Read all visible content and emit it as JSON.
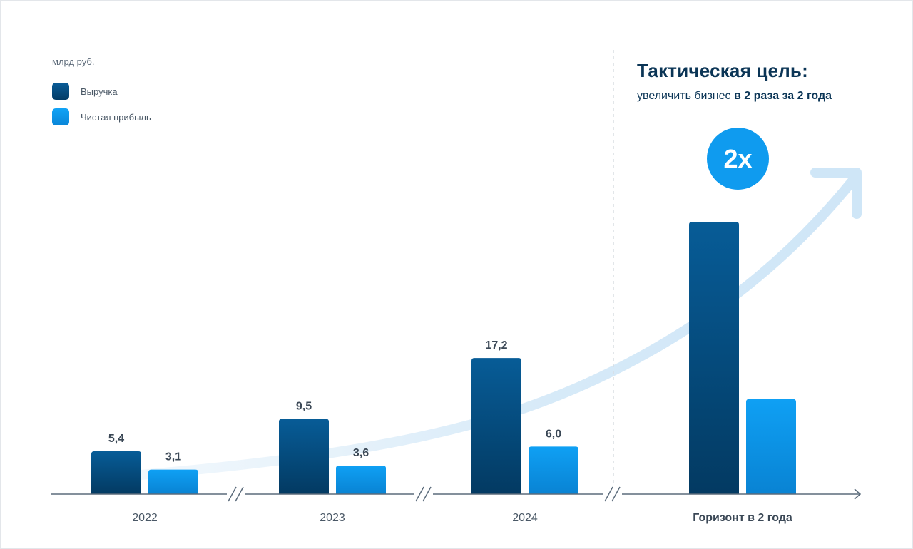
{
  "unit_label": "млрд руб.",
  "legend": [
    {
      "label": "Выручка",
      "color": "#074a7e"
    },
    {
      "label": "Чистая прибыль",
      "color": "#0d93ea"
    }
  ],
  "goal": {
    "title": "Тактическая цель:",
    "subtitle_plain": "увеличить бизнес ",
    "subtitle_bold": "в 2 раза за 2 года",
    "badge": "2x"
  },
  "chart_data": {
    "type": "bar",
    "categories": [
      "2022",
      "2023",
      "2024",
      "Горизонт в 2 года"
    ],
    "series": [
      {
        "name": "Выручка",
        "values": [
          5.4,
          9.5,
          17.2,
          34.4
        ],
        "labels": [
          "5,4",
          "9,5",
          "17,2",
          ""
        ]
      },
      {
        "name": "Чистая прибыль",
        "values": [
          3.1,
          3.6,
          6.0,
          12.0
        ],
        "labels": [
          "3,1",
          "3,6",
          "6,0",
          ""
        ]
      }
    ],
    "ylim": [
      0,
      40
    ],
    "grid": false,
    "legend_position": "top-left",
    "xlabel": "",
    "ylabel": "млрд руб."
  }
}
